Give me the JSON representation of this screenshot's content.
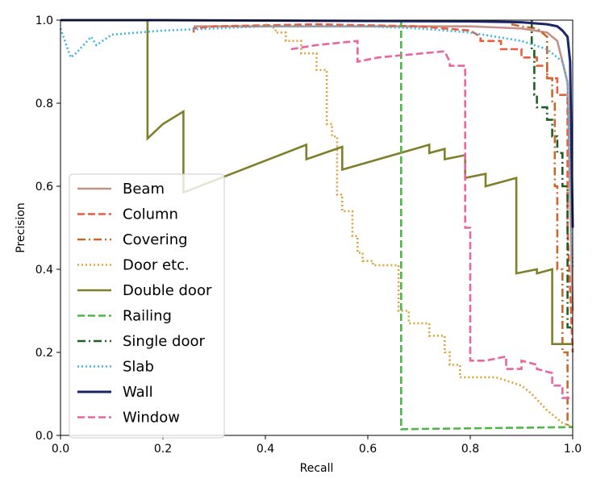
{
  "chart_data": {
    "type": "line",
    "xlabel": "Recall",
    "ylabel": "Precision",
    "xlim": [
      0.0,
      1.0
    ],
    "ylim": [
      0.0,
      1.0
    ],
    "xticks": [
      "0.0",
      "0.2",
      "0.4",
      "0.6",
      "0.8",
      "1.0"
    ],
    "yticks": [
      "0.0",
      "0.2",
      "0.4",
      "0.6",
      "0.8",
      "1.0"
    ],
    "grid": false,
    "legend_position": "lower-left",
    "series": [
      {
        "name": "Beam",
        "color": "#c4918a",
        "dash": "solid",
        "x": [
          0.26,
          0.4,
          0.6,
          0.8,
          0.9,
          0.95,
          0.97,
          0.98,
          0.99,
          1.0
        ],
        "y": [
          0.985,
          0.985,
          0.985,
          0.985,
          0.98,
          0.97,
          0.95,
          0.9,
          0.85,
          0.3
        ]
      },
      {
        "name": "Column",
        "color": "#e55e3e",
        "dash": "dashed",
        "x": [
          0.26,
          0.26,
          0.3,
          0.5,
          0.7,
          0.8,
          0.82,
          0.82,
          0.86,
          0.86,
          0.9,
          0.9,
          0.93,
          0.93,
          0.95,
          0.95,
          0.97,
          0.97,
          0.99,
          0.99,
          1.0
        ],
        "y": [
          0.97,
          0.98,
          0.985,
          0.99,
          0.985,
          0.975,
          0.96,
          0.95,
          0.95,
          0.93,
          0.93,
          0.91,
          0.91,
          0.89,
          0.89,
          0.86,
          0.86,
          0.82,
          0.82,
          0.5,
          0.2
        ]
      },
      {
        "name": "Covering",
        "color": "#c66a2b",
        "dash": "dashdot",
        "x": [
          0.88,
          0.9,
          0.93,
          0.95,
          0.95,
          0.96,
          0.96,
          0.965,
          0.965,
          0.97,
          0.97,
          0.98,
          0.98,
          0.99,
          0.99,
          1.0
        ],
        "y": [
          0.99,
          0.985,
          0.98,
          0.96,
          0.86,
          0.86,
          0.8,
          0.8,
          0.6,
          0.6,
          0.4,
          0.4,
          0.2,
          0.2,
          0.02,
          0.02
        ]
      },
      {
        "name": "Door etc.",
        "color": "#dba33c",
        "dash": "dotted",
        "x": [
          0.4,
          0.42,
          0.42,
          0.44,
          0.44,
          0.47,
          0.47,
          0.5,
          0.5,
          0.52,
          0.52,
          0.53,
          0.53,
          0.54,
          0.54,
          0.55,
          0.55,
          0.57,
          0.57,
          0.58,
          0.58,
          0.59,
          0.59,
          0.61,
          0.61,
          0.66,
          0.66,
          0.68,
          0.68,
          0.72,
          0.72,
          0.75,
          0.75,
          0.76,
          0.76,
          0.78,
          0.78,
          0.8,
          0.85,
          0.9,
          0.92,
          0.95,
          0.98,
          1.0
        ],
        "y": [
          0.99,
          0.98,
          0.97,
          0.97,
          0.95,
          0.95,
          0.92,
          0.92,
          0.88,
          0.88,
          0.75,
          0.75,
          0.72,
          0.72,
          0.58,
          0.58,
          0.54,
          0.54,
          0.48,
          0.48,
          0.44,
          0.44,
          0.42,
          0.42,
          0.41,
          0.41,
          0.3,
          0.3,
          0.27,
          0.27,
          0.24,
          0.24,
          0.2,
          0.2,
          0.17,
          0.17,
          0.14,
          0.14,
          0.14,
          0.12,
          0.1,
          0.06,
          0.03,
          0.02
        ]
      },
      {
        "name": "Double door",
        "color": "#7f7f2b",
        "dash": "solid",
        "x": [
          0.17,
          0.17,
          0.2,
          0.24,
          0.24,
          0.48,
          0.48,
          0.55,
          0.55,
          0.72,
          0.72,
          0.75,
          0.75,
          0.79,
          0.79,
          0.83,
          0.83,
          0.89,
          0.89,
          0.93,
          0.93,
          0.96,
          0.96,
          1.0
        ],
        "y": [
          1.0,
          0.715,
          0.75,
          0.78,
          0.585,
          0.7,
          0.665,
          0.695,
          0.64,
          0.7,
          0.68,
          0.69,
          0.665,
          0.675,
          0.62,
          0.63,
          0.6,
          0.62,
          0.39,
          0.4,
          0.39,
          0.4,
          0.22,
          0.22
        ]
      },
      {
        "name": "Railing",
        "color": "#4cb847",
        "dash": "dashed",
        "x": [
          0.665,
          0.665,
          1.0
        ],
        "y": [
          1.0,
          0.015,
          0.02
        ]
      },
      {
        "name": "Single door",
        "color": "#1e5e22",
        "dash": "dashdot",
        "x": [
          0.92,
          0.92,
          0.925,
          0.925,
          0.93,
          0.93,
          0.95,
          0.95,
          0.96,
          0.96,
          0.97,
          0.97,
          0.98,
          0.98,
          0.99,
          0.99,
          1.0
        ],
        "y": [
          1.0,
          0.93,
          0.93,
          0.82,
          0.82,
          0.79,
          0.79,
          0.76,
          0.76,
          0.72,
          0.72,
          0.68,
          0.68,
          0.6,
          0.6,
          0.26,
          0.26
        ]
      },
      {
        "name": "Slab",
        "color": "#41b3e6",
        "dash": "dotted",
        "x": [
          0.0,
          0.02,
          0.03,
          0.06,
          0.07,
          0.1,
          0.2,
          0.3,
          0.4,
          0.5,
          0.6,
          0.7,
          0.8,
          0.9,
          0.95,
          0.98,
          0.99,
          1.0
        ],
        "y": [
          0.98,
          0.91,
          0.92,
          0.96,
          0.94,
          0.965,
          0.975,
          0.98,
          0.985,
          0.985,
          0.985,
          0.98,
          0.97,
          0.95,
          0.93,
          0.9,
          0.85,
          0.4
        ]
      },
      {
        "name": "Wall",
        "color": "#1b2668",
        "dash": "solid",
        "x": [
          0.0,
          0.2,
          0.4,
          0.6,
          0.8,
          0.9,
          0.95,
          0.97,
          0.98,
          0.99,
          0.995,
          1.0
        ],
        "y": [
          1.0,
          1.0,
          0.999,
          0.998,
          0.997,
          0.995,
          0.99,
          0.985,
          0.975,
          0.96,
          0.9,
          0.5
        ]
      },
      {
        "name": "Window",
        "color": "#e8659f",
        "dash": "dashed",
        "x": [
          0.45,
          0.5,
          0.5,
          0.58,
          0.58,
          0.62,
          0.75,
          0.76,
          0.76,
          0.79,
          0.79,
          0.8,
          0.8,
          0.83,
          0.83,
          0.87,
          0.87,
          0.9,
          0.9,
          0.93,
          0.93,
          0.96,
          0.96,
          0.98,
          0.98,
          1.0
        ],
        "y": [
          0.93,
          0.94,
          0.94,
          0.95,
          0.9,
          0.91,
          0.925,
          0.9,
          0.89,
          0.89,
          0.5,
          0.5,
          0.18,
          0.18,
          0.18,
          0.19,
          0.16,
          0.16,
          0.18,
          0.17,
          0.16,
          0.15,
          0.12,
          0.12,
          0.09,
          0.09
        ]
      }
    ]
  }
}
